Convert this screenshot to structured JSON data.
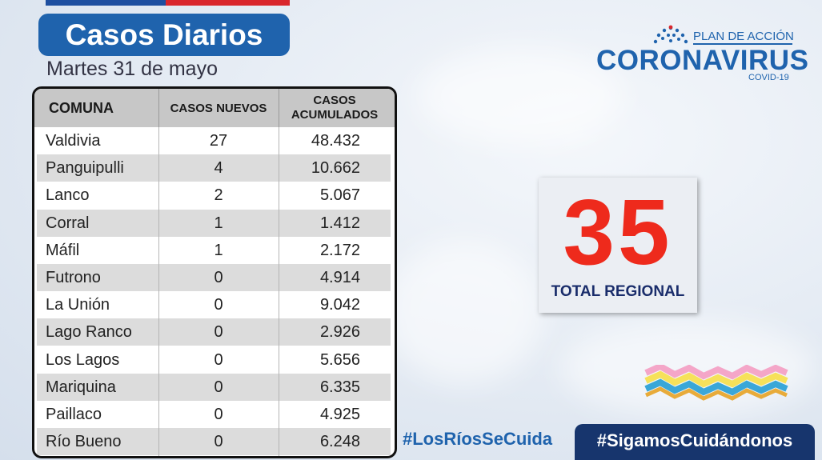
{
  "header": {
    "title": "Casos Diarios",
    "subtitle": "Martes 31 de mayo"
  },
  "table": {
    "columns": [
      "COMUNA",
      "CASOS NUEVOS",
      "CASOS ACUMULADOS"
    ],
    "rows": [
      {
        "comuna": "Valdivia",
        "nuevos": "27",
        "acumulados": "48.432"
      },
      {
        "comuna": "Panguipulli",
        "nuevos": "4",
        "acumulados": "10.662"
      },
      {
        "comuna": "Lanco",
        "nuevos": "2",
        "acumulados": "5.067"
      },
      {
        "comuna": "Corral",
        "nuevos": "1",
        "acumulados": "1.412"
      },
      {
        "comuna": "Máfil",
        "nuevos": "1",
        "acumulados": "2.172"
      },
      {
        "comuna": "Futrono",
        "nuevos": "0",
        "acumulados": "4.914"
      },
      {
        "comuna": "La Unión",
        "nuevos": "0",
        "acumulados": "9.042"
      },
      {
        "comuna": "Lago Ranco",
        "nuevos": "0",
        "acumulados": "2.926"
      },
      {
        "comuna": "Los Lagos",
        "nuevos": "0",
        "acumulados": "5.656"
      },
      {
        "comuna": "Mariquina",
        "nuevos": "0",
        "acumulados": "6.335"
      },
      {
        "comuna": "Paillaco",
        "nuevos": "0",
        "acumulados": "4.925"
      },
      {
        "comuna": "Río Bueno",
        "nuevos": "0",
        "acumulados": "6.248"
      }
    ]
  },
  "logo": {
    "plan": "PLAN DE ACCIÓN",
    "main": "CORONAVIRUS",
    "sub": "COVID-19"
  },
  "total": {
    "value": "35",
    "label": "TOTAL REGIONAL"
  },
  "footer": {
    "hashtag_left": "#LosRíosSeCuida",
    "hashtag_right": "#SigamosCuidándonos"
  },
  "colors": {
    "brand_blue": "#1f63ad",
    "navy": "#17356d",
    "red": "#ee2a1c"
  }
}
